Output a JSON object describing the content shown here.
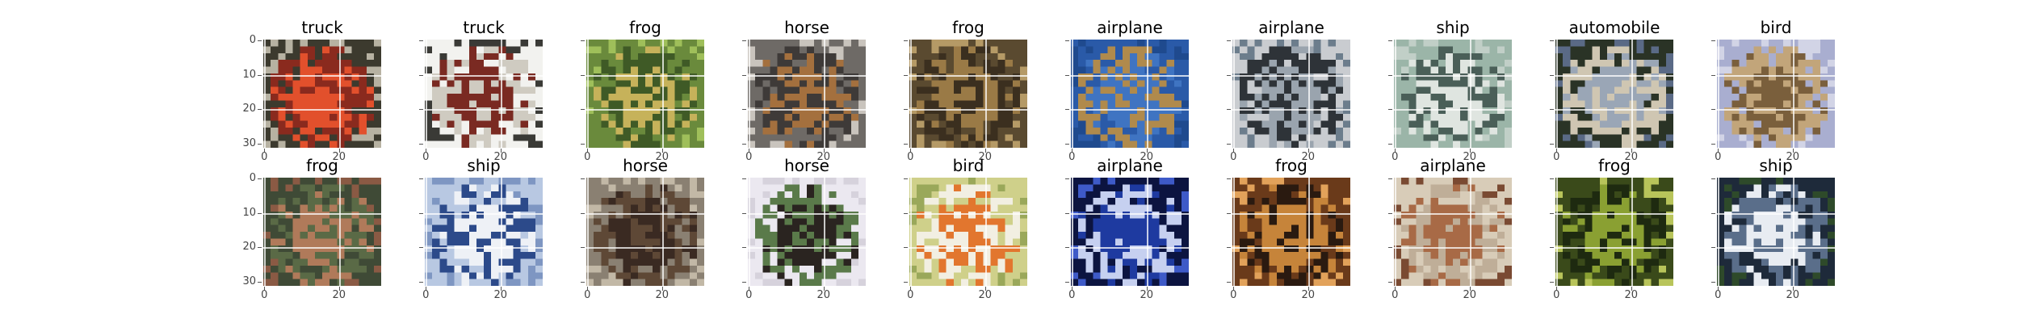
{
  "figure": {
    "grid": true,
    "axes": {
      "x_ticks": [
        "0",
        "20"
      ],
      "y_ticks": [
        "0",
        "10",
        "20",
        "30"
      ]
    },
    "rows": [
      [
        {
          "label": "truck",
          "icon": "truck-photo",
          "palette": [
            "#3c3a2e",
            "#e2502c",
            "#8a2a1e",
            "#b7b2a2"
          ]
        },
        {
          "label": "truck",
          "icon": "truck-photo",
          "palette": [
            "#f2f2ef",
            "#7a2a22",
            "#cfcbc1",
            "#3a3a36"
          ]
        },
        {
          "label": "frog",
          "icon": "frog-photo",
          "palette": [
            "#6a8a3c",
            "#c6b25a",
            "#3f5a26",
            "#9fbf5a"
          ]
        },
        {
          "label": "horse",
          "icon": "horse-photo",
          "palette": [
            "#6e6a66",
            "#a4703e",
            "#3e3a38",
            "#c9c4bd"
          ]
        },
        {
          "label": "frog",
          "icon": "frog-photo",
          "palette": [
            "#5a4a30",
            "#9a7a46",
            "#3b2f1f",
            "#b59a66"
          ]
        },
        {
          "label": "airplane",
          "icon": "airplane-photo",
          "palette": [
            "#2a5aa8",
            "#3f74c2",
            "#b08a4c",
            "#1f4a8e"
          ]
        },
        {
          "label": "airplane",
          "icon": "airplane-photo",
          "palette": [
            "#c9ccd0",
            "#9aa4ae",
            "#2e3338",
            "#6c7d8c"
          ]
        },
        {
          "label": "ship",
          "icon": "ship-photo",
          "palette": [
            "#9bb5a8",
            "#dfe5e0",
            "#4a5f58",
            "#c1cfc7"
          ]
        },
        {
          "label": "automobile",
          "icon": "automobile-photo",
          "palette": [
            "#2a3326",
            "#9aa6b6",
            "#cfc6b2",
            "#5a6a86"
          ]
        },
        {
          "label": "bird",
          "icon": "bird-photo",
          "palette": [
            "#a9aed0",
            "#7a5f3c",
            "#c2a57a",
            "#d2d4e6"
          ]
        }
      ],
      [
        {
          "label": "frog",
          "icon": "frog-photo",
          "palette": [
            "#3f4a36",
            "#b07a5a",
            "#5a6a46",
            "#8a5a44"
          ]
        },
        {
          "label": "ship",
          "icon": "ship-photo",
          "palette": [
            "#b8c8e2",
            "#eef1f6",
            "#2c4a8a",
            "#7e96c2"
          ]
        },
        {
          "label": "horse",
          "icon": "horse-photo",
          "palette": [
            "#8a8072",
            "#3a2a22",
            "#5e4836",
            "#c2b8a6"
          ]
        },
        {
          "label": "horse",
          "icon": "horse-photo",
          "palette": [
            "#ebe8f0",
            "#2a2420",
            "#5a7a4a",
            "#d6d2dc"
          ]
        },
        {
          "label": "bird",
          "icon": "bird-photo",
          "palette": [
            "#cfd08a",
            "#e2762e",
            "#f2efe2",
            "#9aa85a"
          ]
        },
        {
          "label": "airplane",
          "icon": "airplane-photo",
          "palette": [
            "#0c1440",
            "#1e3aa0",
            "#c6d0f0",
            "#3e5ac8"
          ]
        },
        {
          "label": "frog",
          "icon": "frog-photo",
          "palette": [
            "#6a3a1a",
            "#c6843a",
            "#2a1a10",
            "#e2a25a"
          ]
        },
        {
          "label": "airplane",
          "icon": "airplane-photo",
          "palette": [
            "#d8ccb8",
            "#a86a46",
            "#bfae98",
            "#7a4a32"
          ]
        },
        {
          "label": "frog",
          "icon": "frog-photo",
          "palette": [
            "#3a4a1a",
            "#8aa032",
            "#1e2a10",
            "#b8c45a"
          ]
        },
        {
          "label": "ship",
          "icon": "ship-photo",
          "palette": [
            "#1e2a3a",
            "#e8ecf2",
            "#5a6e8a",
            "#2e4a2a"
          ]
        }
      ]
    ]
  }
}
